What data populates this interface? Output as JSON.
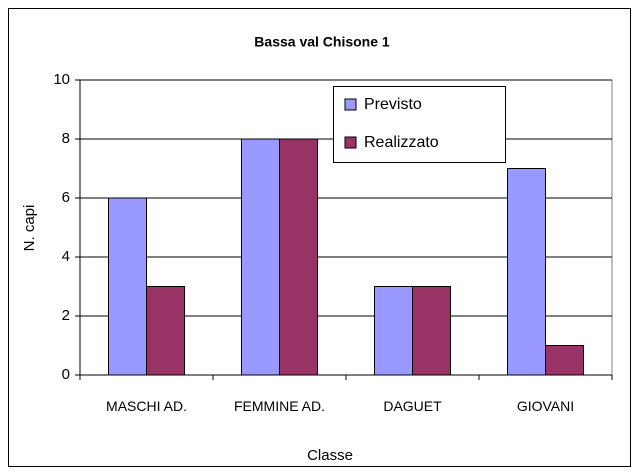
{
  "chart_data": {
    "type": "bar",
    "title": "Bassa val Chisone 1",
    "categories": [
      "MASCHI AD.",
      "FEMMINE AD.",
      "DAGUET",
      "GIOVANI"
    ],
    "series": [
      {
        "name": "Previsto",
        "color": "#9999ff",
        "values": [
          6,
          8,
          3,
          7
        ]
      },
      {
        "name": "Realizzato",
        "color": "#993366",
        "values": [
          3,
          8,
          3,
          1
        ]
      }
    ],
    "xlabel": "Classe",
    "ylabel": "N. capi",
    "ylim": [
      0,
      10
    ],
    "yticks": [
      0,
      2,
      4,
      6,
      8,
      10
    ],
    "grid": true
  }
}
